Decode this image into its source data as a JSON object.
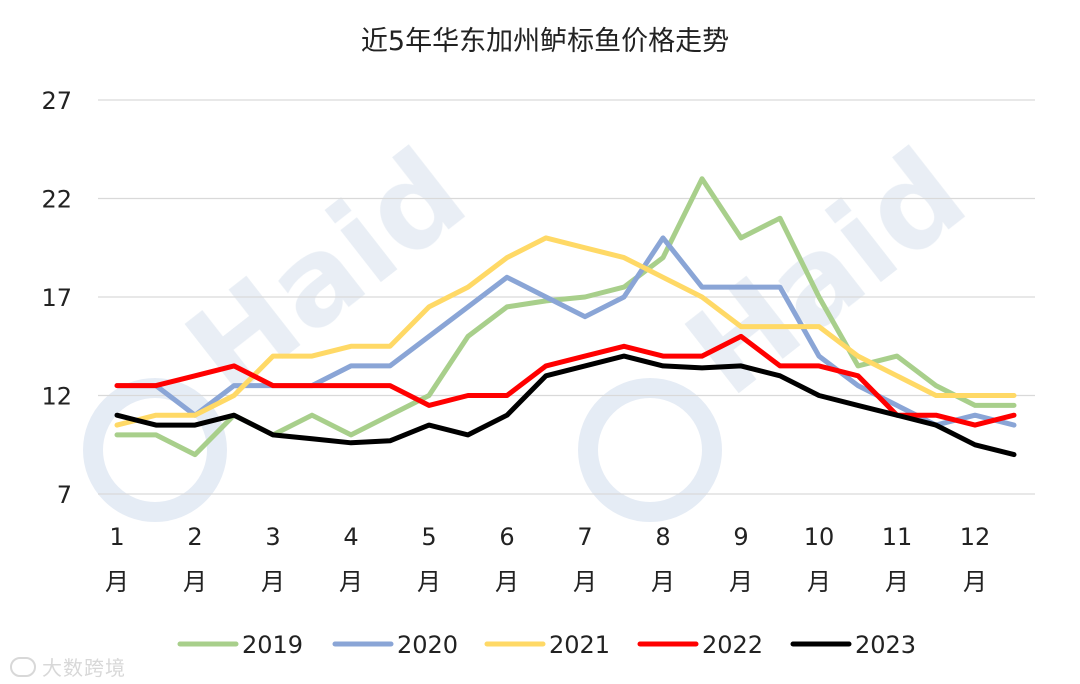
{
  "watermark": {
    "text_big": "Haid",
    "text_small": "大数跨境",
    "logo_color": "#dde6f2",
    "text_color": "#e4eaf1"
  },
  "chart_data": {
    "type": "line",
    "title": "近5年华东加州鲈标鱼价格走势",
    "xlabel": "",
    "ylabel": "",
    "ylim": [
      7,
      27
    ],
    "yticks": [
      7,
      12,
      17,
      22,
      27
    ],
    "grid": true,
    "legend_position": "bottom",
    "month_ticks": [
      {
        "num": "1",
        "unit": "月"
      },
      {
        "num": "2",
        "unit": "月"
      },
      {
        "num": "3",
        "unit": "月"
      },
      {
        "num": "4",
        "unit": "月"
      },
      {
        "num": "5",
        "unit": "月"
      },
      {
        "num": "6",
        "unit": "月"
      },
      {
        "num": "7",
        "unit": "月"
      },
      {
        "num": "8",
        "unit": "月"
      },
      {
        "num": "9",
        "unit": "月"
      },
      {
        "num": "10",
        "unit": "月"
      },
      {
        "num": "11",
        "unit": "月"
      },
      {
        "num": "12",
        "unit": "月"
      }
    ],
    "x": [
      1,
      1.5,
      2,
      2.5,
      3,
      3.5,
      4,
      4.5,
      5,
      5.5,
      6,
      6.5,
      7,
      7.5,
      8,
      8.5,
      9,
      9.5,
      10,
      10.5,
      11,
      11.5,
      12,
      12.5
    ],
    "series": [
      {
        "name": "2019",
        "color": "#a8cf8b",
        "values": [
          10,
          10,
          9,
          11,
          10,
          11,
          10,
          11,
          12,
          15,
          16.5,
          16.8,
          17,
          17.5,
          19,
          23,
          20,
          21,
          17,
          13.5,
          14,
          12.5,
          11.5,
          11.5
        ]
      },
      {
        "name": "2020",
        "color": "#8aa5d6",
        "values": [
          12.5,
          12.5,
          11,
          12.5,
          12.5,
          12.5,
          13.5,
          13.5,
          15,
          16.5,
          18,
          17,
          16,
          17,
          20,
          17.5,
          17.5,
          17.5,
          14,
          12.5,
          11.5,
          10.5,
          11,
          10.5
        ]
      },
      {
        "name": "2021",
        "color": "#ffd966",
        "values": [
          10.5,
          11,
          11,
          12,
          14,
          14,
          14.5,
          14.5,
          16.5,
          17.5,
          19,
          20,
          19.5,
          19,
          18,
          17,
          15.5,
          15.5,
          15.5,
          14,
          13,
          12,
          12,
          12
        ]
      },
      {
        "name": "2022",
        "color": "#ff0000",
        "values": [
          12.5,
          12.5,
          13,
          13.5,
          12.5,
          12.5,
          12.5,
          12.5,
          11.5,
          12,
          12,
          13.5,
          14,
          14.5,
          14,
          14,
          15,
          13.5,
          13.5,
          13,
          11,
          11,
          10.5,
          11
        ]
      },
      {
        "name": "2023",
        "color": "#000000",
        "values": [
          11,
          10.5,
          10.5,
          11,
          10,
          9.8,
          9.6,
          9.7,
          10.5,
          10,
          11,
          13,
          13.5,
          14,
          13.5,
          13.4,
          13.5,
          13,
          12,
          11.5,
          11,
          10.5,
          9.5,
          9
        ]
      }
    ]
  }
}
